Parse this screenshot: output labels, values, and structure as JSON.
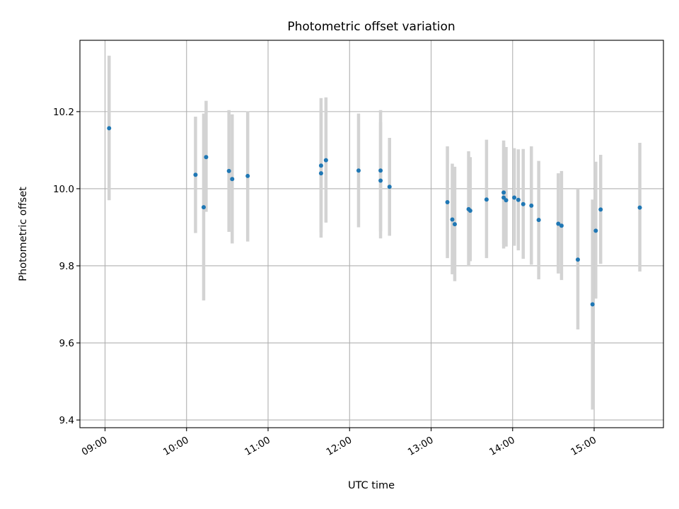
{
  "chart_data": {
    "type": "scatter",
    "title": "Photometric offset variation",
    "xlabel": "UTC time",
    "ylabel": "Photometric offset",
    "grid": true,
    "colors": {
      "point": "#1f77b4",
      "errorbar": "#d3d3d3",
      "grid": "#b0b0b0",
      "axis": "#000000"
    },
    "xlim_hours": [
      8.692,
      15.85
    ],
    "ylim": [
      9.38,
      10.385
    ],
    "x_ticks": [
      {
        "value": 9,
        "label": "09:00"
      },
      {
        "value": 10,
        "label": "10:00"
      },
      {
        "value": 11,
        "label": "11:00"
      },
      {
        "value": 12,
        "label": "12:00"
      },
      {
        "value": 13,
        "label": "13:00"
      },
      {
        "value": 14,
        "label": "14:00"
      },
      {
        "value": 15,
        "label": "15:00"
      }
    ],
    "y_ticks": [
      {
        "value": 9.4,
        "label": "9.4"
      },
      {
        "value": 9.6,
        "label": "9.6"
      },
      {
        "value": 9.8,
        "label": "9.8"
      },
      {
        "value": 10.0,
        "label": "10.0"
      },
      {
        "value": 10.2,
        "label": "10.2"
      }
    ],
    "series": [
      {
        "name": "Photometric offset",
        "points": [
          {
            "x": 9.05,
            "y": 10.157,
            "ylo": 9.97,
            "yhi": 10.345
          },
          {
            "x": 10.11,
            "y": 10.036,
            "ylo": 9.885,
            "yhi": 10.187
          },
          {
            "x": 10.21,
            "y": 9.952,
            "ylo": 9.71,
            "yhi": 10.195
          },
          {
            "x": 10.24,
            "y": 10.082,
            "ylo": 9.94,
            "yhi": 10.228
          },
          {
            "x": 10.52,
            "y": 10.046,
            "ylo": 9.888,
            "yhi": 10.204
          },
          {
            "x": 10.56,
            "y": 10.025,
            "ylo": 9.858,
            "yhi": 10.193
          },
          {
            "x": 10.75,
            "y": 10.033,
            "ylo": 9.863,
            "yhi": 10.201
          },
          {
            "x": 11.65,
            "y": 10.06,
            "ylo": 9.887,
            "yhi": 10.235
          },
          {
            "x": 11.65,
            "y": 10.04,
            "ylo": 9.873,
            "yhi": 10.205
          },
          {
            "x": 11.71,
            "y": 10.074,
            "ylo": 9.912,
            "yhi": 10.237
          },
          {
            "x": 12.11,
            "y": 10.047,
            "ylo": 9.9,
            "yhi": 10.195
          },
          {
            "x": 12.38,
            "y": 10.047,
            "ylo": 9.89,
            "yhi": 10.204
          },
          {
            "x": 12.38,
            "y": 10.021,
            "ylo": 9.871,
            "yhi": 10.172
          },
          {
            "x": 12.49,
            "y": 10.005,
            "ylo": 9.878,
            "yhi": 10.132
          },
          {
            "x": 13.2,
            "y": 9.965,
            "ylo": 9.82,
            "yhi": 10.11
          },
          {
            "x": 13.26,
            "y": 9.92,
            "ylo": 9.778,
            "yhi": 10.065
          },
          {
            "x": 13.29,
            "y": 9.908,
            "ylo": 9.76,
            "yhi": 10.057
          },
          {
            "x": 13.46,
            "y": 9.947,
            "ylo": 9.8,
            "yhi": 10.097
          },
          {
            "x": 13.48,
            "y": 9.943,
            "ylo": 9.812,
            "yhi": 10.082
          },
          {
            "x": 13.68,
            "y": 9.972,
            "ylo": 9.82,
            "yhi": 10.127
          },
          {
            "x": 13.89,
            "y": 9.99,
            "ylo": 9.845,
            "yhi": 10.125
          },
          {
            "x": 13.89,
            "y": 9.977,
            "ylo": 9.857,
            "yhi": 10.117
          },
          {
            "x": 13.92,
            "y": 9.97,
            "ylo": 9.85,
            "yhi": 10.108
          },
          {
            "x": 14.02,
            "y": 9.977,
            "ylo": 9.852,
            "yhi": 10.105
          },
          {
            "x": 14.07,
            "y": 9.971,
            "ylo": 9.84,
            "yhi": 10.102
          },
          {
            "x": 14.13,
            "y": 9.96,
            "ylo": 9.818,
            "yhi": 10.103
          },
          {
            "x": 14.23,
            "y": 9.956,
            "ylo": 9.803,
            "yhi": 10.11
          },
          {
            "x": 14.32,
            "y": 9.919,
            "ylo": 9.765,
            "yhi": 10.072
          },
          {
            "x": 14.56,
            "y": 9.909,
            "ylo": 9.78,
            "yhi": 10.04
          },
          {
            "x": 14.6,
            "y": 9.904,
            "ylo": 9.763,
            "yhi": 10.046
          },
          {
            "x": 14.8,
            "y": 9.816,
            "ylo": 9.635,
            "yhi": 10.0
          },
          {
            "x": 14.98,
            "y": 9.7,
            "ylo": 9.427,
            "yhi": 9.972
          },
          {
            "x": 15.02,
            "y": 9.891,
            "ylo": 9.715,
            "yhi": 10.07
          },
          {
            "x": 15.08,
            "y": 9.946,
            "ylo": 9.805,
            "yhi": 10.088
          },
          {
            "x": 15.56,
            "y": 9.951,
            "ylo": 9.785,
            "yhi": 10.119
          }
        ]
      }
    ]
  }
}
